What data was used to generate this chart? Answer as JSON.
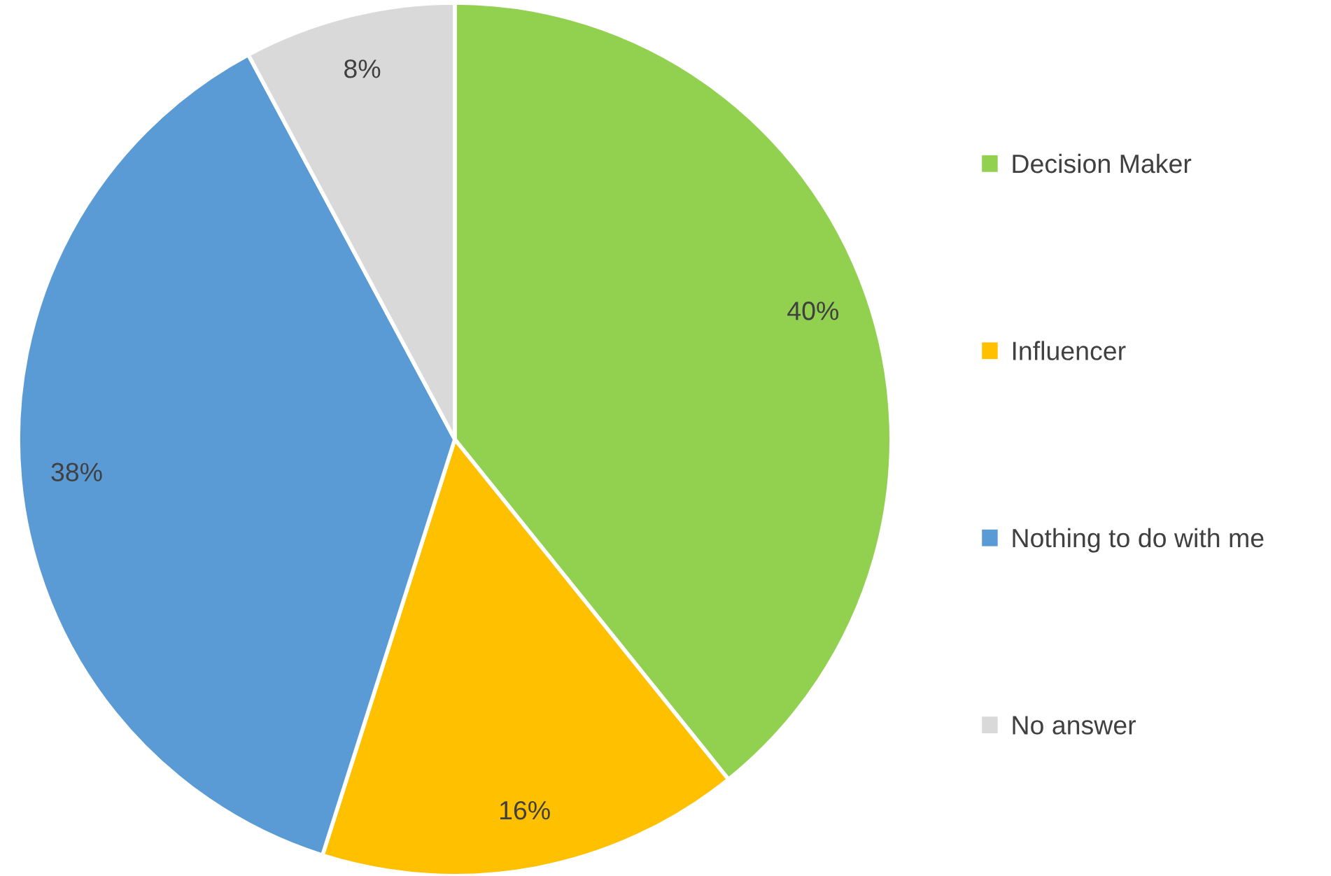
{
  "chart_data": {
    "type": "pie",
    "categories": [
      "Decision Maker",
      "Influencer",
      "Nothing to do with me",
      "No answer"
    ],
    "values": [
      40,
      16,
      38,
      8
    ],
    "colors": [
      "#92d050",
      "#ffc000",
      "#5b9bd5",
      "#d9d9d9"
    ],
    "value_labels": [
      "40%",
      "16%",
      "38%",
      "8%"
    ],
    "legend": "right"
  }
}
